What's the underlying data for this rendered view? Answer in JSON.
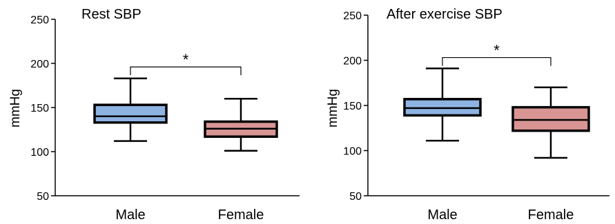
{
  "chart_data": [
    {
      "type": "box",
      "title": "Rest SBP",
      "ylabel": "mmHg",
      "ylim": [
        50,
        250
      ],
      "yticks": [
        50,
        100,
        150,
        200,
        250
      ],
      "categories": [
        "Male",
        "Female"
      ],
      "boxes": [
        {
          "category": "Male",
          "min": 112,
          "q1": 133,
          "median": 140,
          "q3": 153,
          "max": 183,
          "color": "#8DB3E2"
        },
        {
          "category": "Female",
          "min": 101,
          "q1": 117,
          "median": 126,
          "q3": 134,
          "max": 160,
          "color": "#D99594"
        }
      ],
      "annotation": {
        "text": "*",
        "between": [
          "Male",
          "Female"
        ],
        "bracket_y": 196
      }
    },
    {
      "type": "box",
      "title": "After exercise SBP",
      "ylabel": "mmHg",
      "ylim": [
        50,
        250
      ],
      "yticks": [
        50,
        100,
        150,
        200,
        250
      ],
      "categories": [
        "Male",
        "Female"
      ],
      "boxes": [
        {
          "category": "Male",
          "min": 111,
          "q1": 139,
          "median": 147,
          "q3": 157,
          "max": 191,
          "color": "#8DB3E2"
        },
        {
          "category": "Female",
          "min": 92,
          "q1": 122,
          "median": 134,
          "q3": 148,
          "max": 170,
          "color": "#D99594"
        }
      ],
      "annotation": {
        "text": "*",
        "between": [
          "Male",
          "Female"
        ],
        "bracket_y": 203
      }
    }
  ]
}
